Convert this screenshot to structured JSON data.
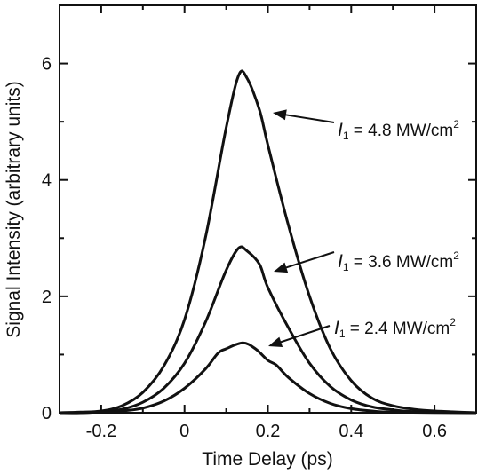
{
  "chart_data": {
    "type": "line",
    "xlabel": "Time Delay (ps)",
    "ylabel": "Signal Intensity (arbitrary units)",
    "xlim": [
      -0.3,
      0.7
    ],
    "ylim": [
      0,
      7
    ],
    "xticks": [
      -0.2,
      0,
      0.2,
      0.4,
      0.6
    ],
    "xtick_labels": [
      "-0.2",
      "0",
      "0.2",
      "0.4",
      "0.6"
    ],
    "yticks": [
      0,
      2,
      4,
      6
    ],
    "ytick_labels": [
      "0",
      "2",
      "4",
      "6"
    ],
    "grid": false,
    "series": [
      {
        "annotation": {
          "var": "I",
          "sub": "1",
          "text": " = 4.8 MW/cm",
          "sup": "2"
        },
        "points": [
          [
            -0.3,
            0.0
          ],
          [
            -0.25,
            0.01
          ],
          [
            -0.2,
            0.03
          ],
          [
            -0.15,
            0.12
          ],
          [
            -0.1,
            0.35
          ],
          [
            -0.05,
            0.8
          ],
          [
            0.0,
            1.6
          ],
          [
            0.05,
            3.0
          ],
          [
            0.1,
            4.9
          ],
          [
            0.13,
            5.8
          ],
          [
            0.15,
            5.75
          ],
          [
            0.18,
            5.2
          ],
          [
            0.2,
            4.6
          ],
          [
            0.25,
            3.2
          ],
          [
            0.3,
            2.0
          ],
          [
            0.35,
            1.1
          ],
          [
            0.4,
            0.55
          ],
          [
            0.45,
            0.25
          ],
          [
            0.5,
            0.12
          ],
          [
            0.55,
            0.06
          ],
          [
            0.6,
            0.03
          ],
          [
            0.7,
            0.0
          ]
        ]
      },
      {
        "annotation": {
          "var": "I",
          "sub": "1",
          "text": " = 3.6 MW/cm",
          "sup": "2"
        },
        "points": [
          [
            -0.3,
            0.0
          ],
          [
            -0.25,
            0.0
          ],
          [
            -0.2,
            0.02
          ],
          [
            -0.15,
            0.06
          ],
          [
            -0.1,
            0.18
          ],
          [
            -0.05,
            0.42
          ],
          [
            0.0,
            0.85
          ],
          [
            0.05,
            1.55
          ],
          [
            0.1,
            2.45
          ],
          [
            0.13,
            2.83
          ],
          [
            0.15,
            2.78
          ],
          [
            0.18,
            2.55
          ],
          [
            0.2,
            2.15
          ],
          [
            0.25,
            1.45
          ],
          [
            0.3,
            0.85
          ],
          [
            0.35,
            0.45
          ],
          [
            0.4,
            0.22
          ],
          [
            0.45,
            0.1
          ],
          [
            0.5,
            0.05
          ],
          [
            0.55,
            0.02
          ],
          [
            0.7,
            0.0
          ]
        ]
      },
      {
        "annotation": {
          "var": "I",
          "sub": "1",
          "text": " = 2.4 MW/cm",
          "sup": "2"
        },
        "points": [
          [
            -0.3,
            0.0
          ],
          [
            -0.2,
            0.01
          ],
          [
            -0.15,
            0.03
          ],
          [
            -0.1,
            0.08
          ],
          [
            -0.05,
            0.2
          ],
          [
            0.0,
            0.42
          ],
          [
            0.05,
            0.75
          ],
          [
            0.08,
            1.02
          ],
          [
            0.1,
            1.1
          ],
          [
            0.14,
            1.2
          ],
          [
            0.17,
            1.1
          ],
          [
            0.2,
            0.9
          ],
          [
            0.22,
            0.82
          ],
          [
            0.25,
            0.6
          ],
          [
            0.3,
            0.33
          ],
          [
            0.35,
            0.16
          ],
          [
            0.4,
            0.07
          ],
          [
            0.45,
            0.03
          ],
          [
            0.5,
            0.01
          ],
          [
            0.7,
            0.0
          ]
        ]
      }
    ]
  }
}
